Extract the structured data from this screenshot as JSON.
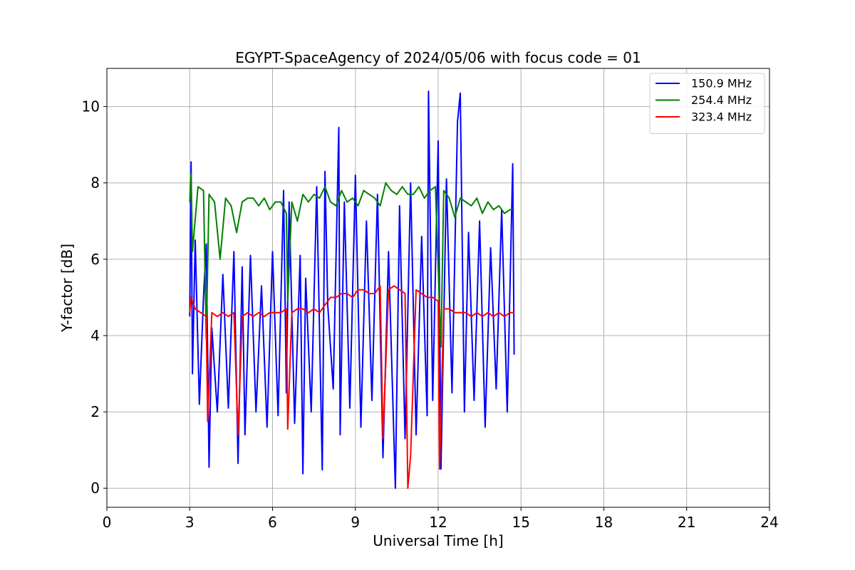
{
  "chart_data": {
    "type": "line",
    "title": "EGYPT-SpaceAgency of 2024/05/06 with focus code = 01",
    "xlabel": "Universal Time [h]",
    "ylabel": "Y-factor [dB]",
    "xlim": [
      0,
      24
    ],
    "ylim": [
      -0.5,
      11
    ],
    "xticks": [
      0,
      3,
      6,
      9,
      12,
      15,
      18,
      21,
      24
    ],
    "yticks": [
      0,
      2,
      4,
      6,
      8,
      10
    ],
    "grid": true,
    "legend_position": "top-right",
    "series": [
      {
        "name": "150.9 MHz",
        "color": "#0000ff",
        "x": [
          3.0,
          3.05,
          3.1,
          3.2,
          3.35,
          3.5,
          3.6,
          3.7,
          3.8,
          4.0,
          4.2,
          4.4,
          4.6,
          4.75,
          4.9,
          5.0,
          5.2,
          5.4,
          5.6,
          5.8,
          6.0,
          6.2,
          6.4,
          6.5,
          6.6,
          6.8,
          7.0,
          7.1,
          7.2,
          7.4,
          7.6,
          7.8,
          7.9,
          8.0,
          8.2,
          8.4,
          8.45,
          8.6,
          8.8,
          9.0,
          9.2,
          9.4,
          9.6,
          9.8,
          10.0,
          10.2,
          10.45,
          10.6,
          10.8,
          11.0,
          11.2,
          11.4,
          11.6,
          11.65,
          11.8,
          12.0,
          12.1,
          12.3,
          12.5,
          12.7,
          12.8,
          12.95,
          13.1,
          13.3,
          13.5,
          13.7,
          13.9,
          14.1,
          14.3,
          14.5,
          14.7,
          14.75
        ],
        "y": [
          4.5,
          8.55,
          3.0,
          6.5,
          2.2,
          5.0,
          6.4,
          0.55,
          4.2,
          2.0,
          5.6,
          2.1,
          6.2,
          0.65,
          5.8,
          1.4,
          6.1,
          2.0,
          5.3,
          1.6,
          6.2,
          1.9,
          7.8,
          2.5,
          7.5,
          1.7,
          6.1,
          0.38,
          5.5,
          2.0,
          7.9,
          0.48,
          8.3,
          4.8,
          2.6,
          9.45,
          1.4,
          7.5,
          2.1,
          8.2,
          1.6,
          7.0,
          2.3,
          7.7,
          0.8,
          6.2,
          0.0,
          7.4,
          1.3,
          8.0,
          1.4,
          6.6,
          1.9,
          10.4,
          2.3,
          9.1,
          0.5,
          8.1,
          2.5,
          9.6,
          10.35,
          2.0,
          6.7,
          2.3,
          7.0,
          1.6,
          6.3,
          2.6,
          7.3,
          2.0,
          8.5,
          3.5
        ]
      },
      {
        "name": "254.4 MHz",
        "color": "#008000",
        "x": [
          3.0,
          3.05,
          3.1,
          3.3,
          3.5,
          3.6,
          3.7,
          3.9,
          4.1,
          4.3,
          4.5,
          4.7,
          4.9,
          5.1,
          5.3,
          5.5,
          5.7,
          5.9,
          6.1,
          6.3,
          6.5,
          6.55,
          6.7,
          6.9,
          7.1,
          7.3,
          7.5,
          7.7,
          7.9,
          8.1,
          8.3,
          8.5,
          8.7,
          8.9,
          9.1,
          9.3,
          9.5,
          9.7,
          9.9,
          10.1,
          10.3,
          10.5,
          10.7,
          10.9,
          11.1,
          11.3,
          11.5,
          11.7,
          11.9,
          12.1,
          12.2,
          12.4,
          12.6,
          12.8,
          13.0,
          13.2,
          13.4,
          13.6,
          13.8,
          14.0,
          14.2,
          14.4,
          14.6,
          14.75
        ],
        "y": [
          7.5,
          8.25,
          6.2,
          7.9,
          7.8,
          3.9,
          7.7,
          7.5,
          6.0,
          7.6,
          7.4,
          6.7,
          7.5,
          7.6,
          7.6,
          7.4,
          7.6,
          7.3,
          7.5,
          7.5,
          7.2,
          4.9,
          7.5,
          7.0,
          7.7,
          7.5,
          7.7,
          7.6,
          7.9,
          7.5,
          7.4,
          7.8,
          7.5,
          7.6,
          7.4,
          7.8,
          7.7,
          7.6,
          7.4,
          8.0,
          7.8,
          7.7,
          7.9,
          7.7,
          7.7,
          7.9,
          7.6,
          7.8,
          7.9,
          3.7,
          7.8,
          7.6,
          7.1,
          7.6,
          7.5,
          7.4,
          7.6,
          7.2,
          7.5,
          7.3,
          7.4,
          7.2,
          7.3,
          7.3
        ]
      },
      {
        "name": "323.4 MHz",
        "color": "#ff0000",
        "x": [
          3.0,
          3.05,
          3.2,
          3.4,
          3.6,
          3.65,
          3.8,
          4.0,
          4.2,
          4.4,
          4.6,
          4.75,
          4.9,
          5.1,
          5.3,
          5.5,
          5.7,
          5.9,
          6.1,
          6.3,
          6.5,
          6.55,
          6.7,
          6.9,
          7.1,
          7.3,
          7.5,
          7.7,
          7.9,
          8.1,
          8.3,
          8.5,
          8.7,
          8.9,
          9.1,
          9.3,
          9.5,
          9.7,
          9.9,
          10.0,
          10.2,
          10.4,
          10.6,
          10.8,
          10.9,
          11.0,
          11.2,
          11.4,
          11.6,
          11.8,
          12.0,
          12.05,
          12.2,
          12.4,
          12.6,
          12.8,
          13.0,
          13.2,
          13.4,
          13.6,
          13.8,
          14.0,
          14.2,
          14.4,
          14.6,
          14.75
        ],
        "y": [
          4.6,
          5.0,
          4.7,
          4.6,
          4.5,
          1.75,
          4.6,
          4.5,
          4.6,
          4.5,
          4.6,
          1.4,
          4.5,
          4.6,
          4.5,
          4.6,
          4.5,
          4.6,
          4.6,
          4.6,
          4.7,
          1.55,
          4.6,
          4.7,
          4.7,
          4.6,
          4.7,
          4.6,
          4.8,
          5.0,
          5.0,
          5.1,
          5.1,
          5.0,
          5.2,
          5.2,
          5.1,
          5.1,
          5.3,
          1.3,
          5.2,
          5.3,
          5.2,
          5.1,
          0.0,
          0.85,
          5.2,
          5.1,
          5.0,
          5.0,
          4.9,
          0.5,
          4.7,
          4.7,
          4.6,
          4.6,
          4.6,
          4.5,
          4.6,
          4.5,
          4.6,
          4.5,
          4.6,
          4.5,
          4.6,
          4.6
        ]
      }
    ]
  }
}
